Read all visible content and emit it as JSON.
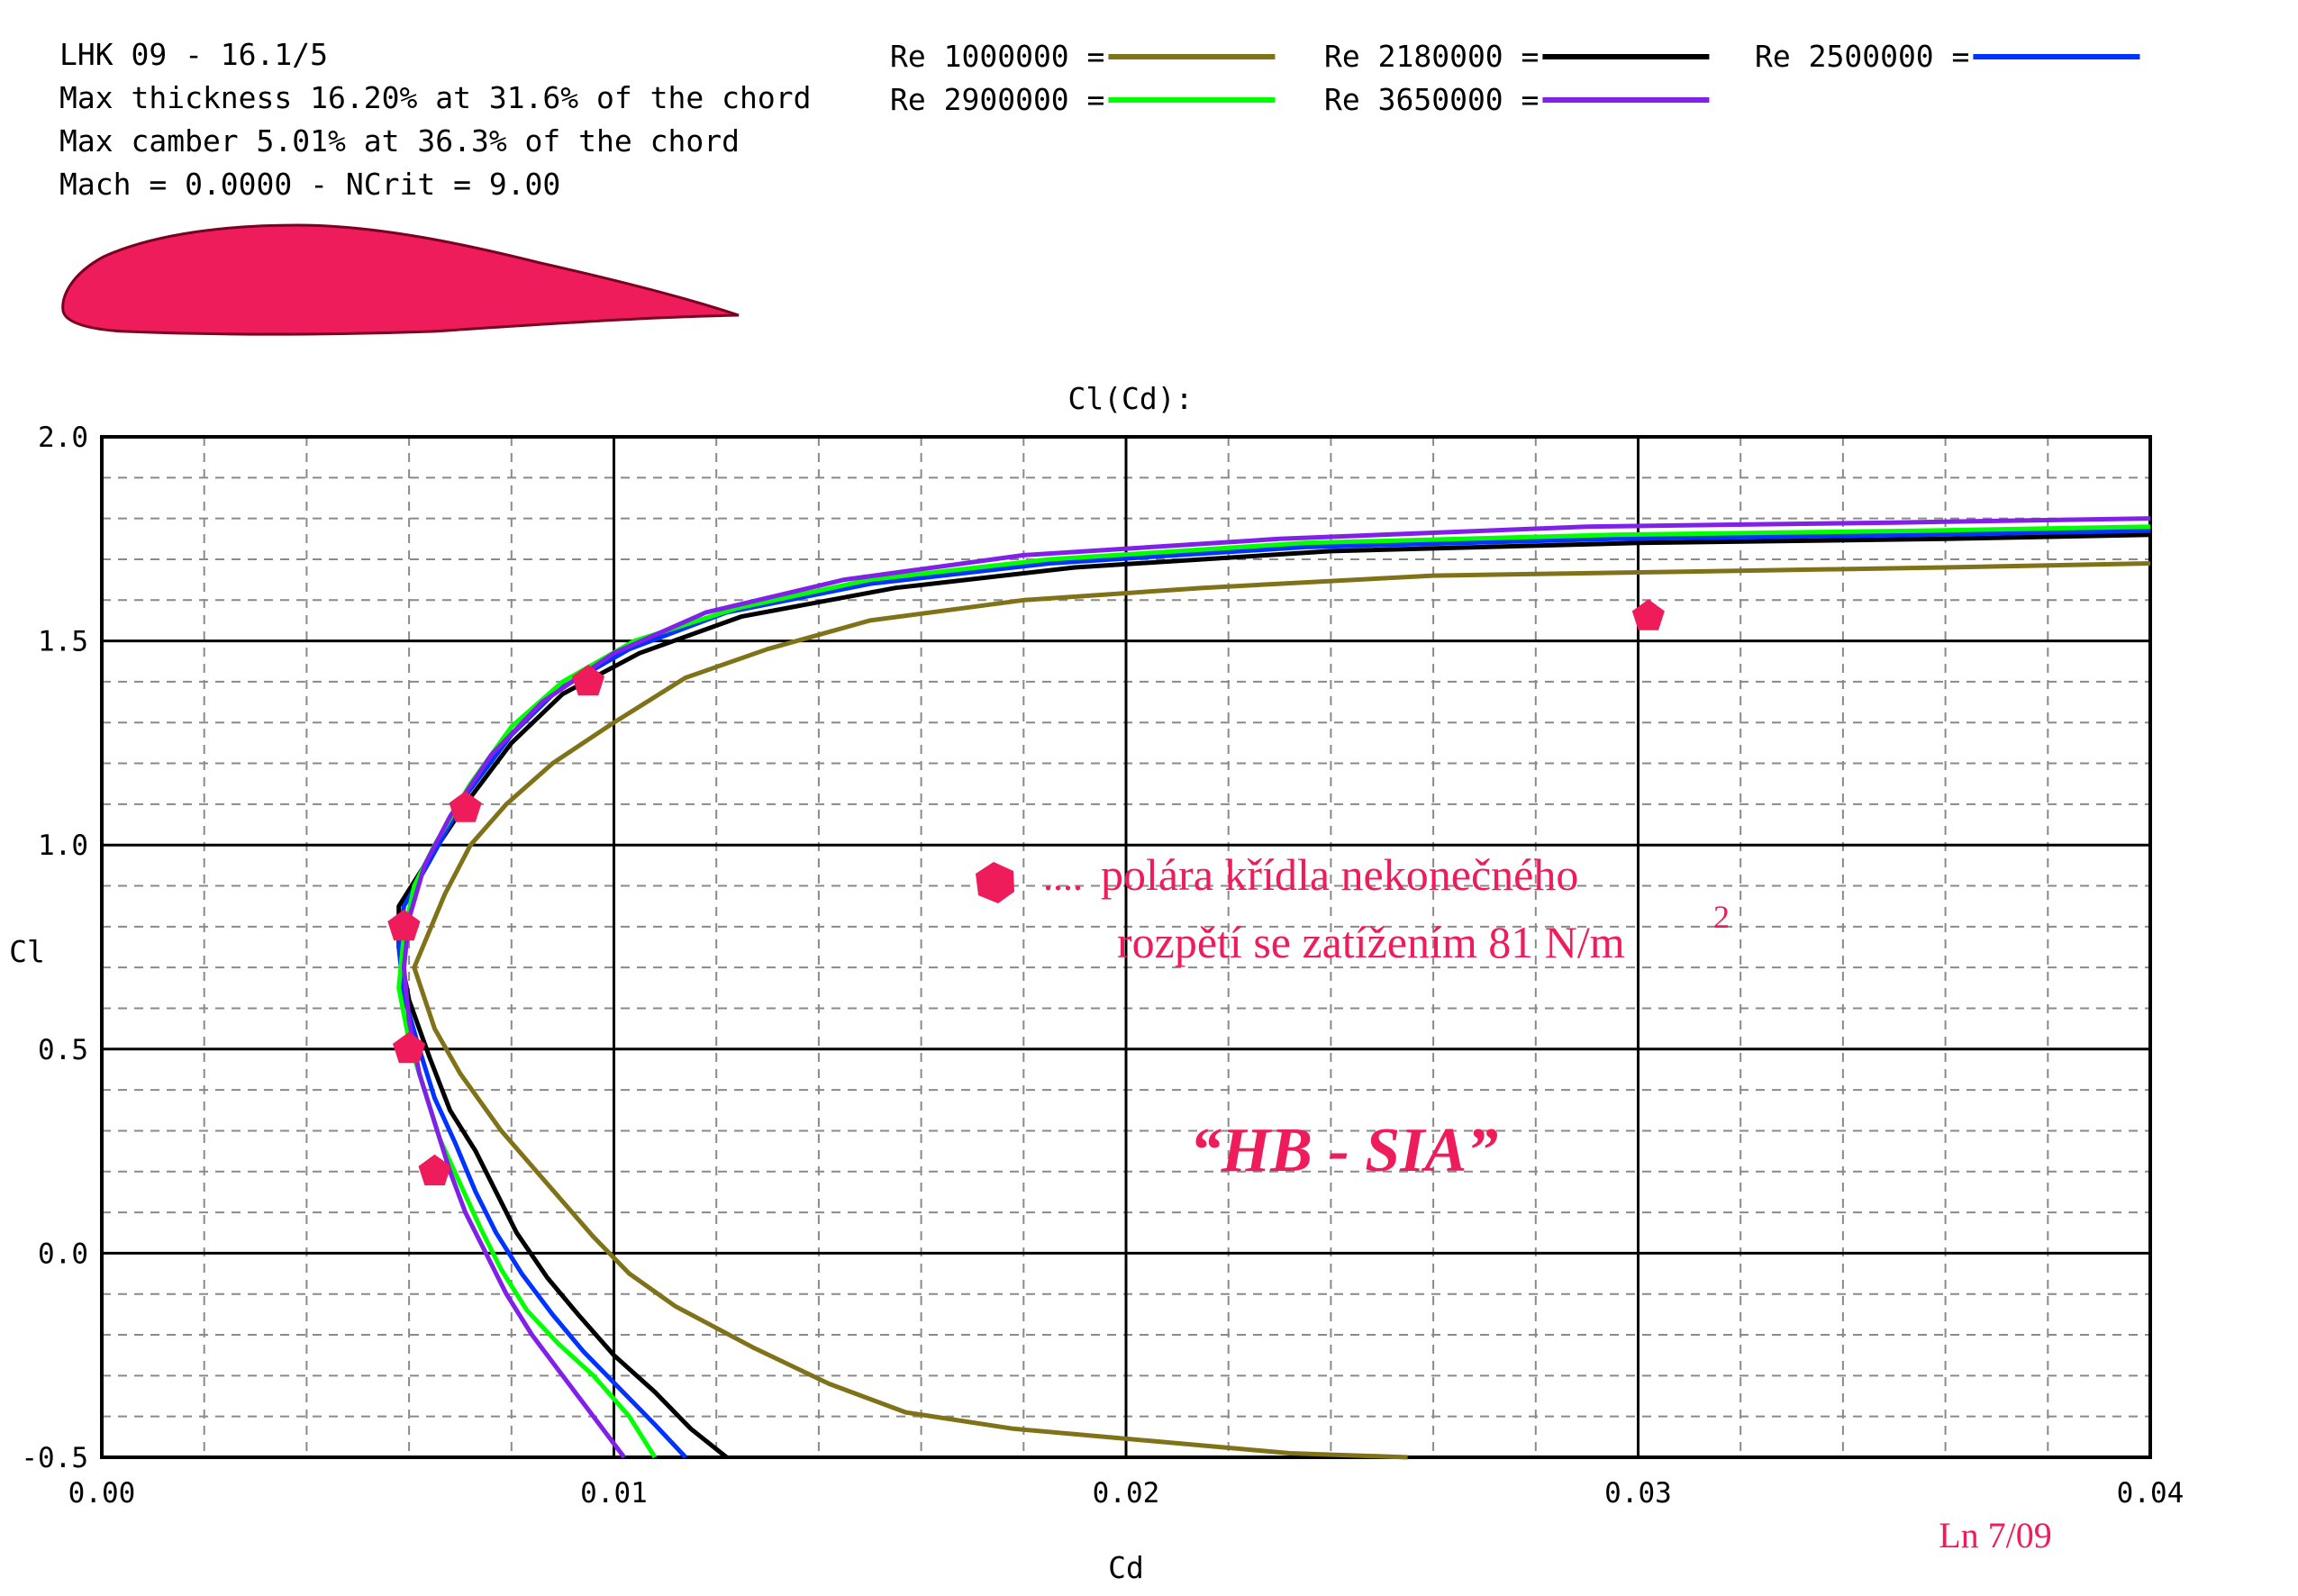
{
  "header": {
    "airfoil_name": "LHK 09 - 16.1/5",
    "thickness_line": "Max thickness 16.20% at 31.6% of the chord",
    "camber_line": "Max camber 5.01% at 36.3% of the chord",
    "mach_line": "Mach = 0.0000 - NCrit = 9.00"
  },
  "colors": {
    "airfoil_fill": "#ee1c5a",
    "marker": "#ee1c5a",
    "annotation": "#ee1c5a"
  },
  "annotations": {
    "marker_legend_dots": "....",
    "marker_legend_line1": "polára křídla nekonečného",
    "marker_legend_line2": "rozpětí se zatížením 81 N/m",
    "marker_legend_sup": "2",
    "name_label": "“HB - SIA”",
    "signature": "Ln 7/09"
  },
  "chart_data": {
    "type": "line",
    "title": "Cl(Cd):",
    "xlabel": "Cd",
    "ylabel": "Cl",
    "xlim": [
      0.0,
      0.04
    ],
    "ylim": [
      -0.5,
      2.0
    ],
    "x_ticks": [
      "0.00",
      "0.01",
      "0.02",
      "0.03",
      "0.04"
    ],
    "y_ticks": [
      "2.0",
      "1.5",
      "1.0",
      "0.5",
      "0.0",
      "-0.5"
    ],
    "grid": true,
    "legend_position": "top",
    "series": [
      {
        "name": "Re 1000000 =",
        "color": "#7f7218",
        "x": [
          0.0255,
          0.0232,
          0.0205,
          0.0178,
          0.0157,
          0.0142,
          0.0127,
          0.0112,
          0.0103,
          0.0096,
          0.0087,
          0.0078,
          0.007,
          0.0065,
          0.0061,
          0.0067,
          0.0072,
          0.0079,
          0.0088,
          0.01,
          0.0114,
          0.013,
          0.015,
          0.018,
          0.0215,
          0.026,
          0.031,
          0.036,
          0.04
        ],
        "y": [
          -0.5,
          -0.49,
          -0.46,
          -0.43,
          -0.39,
          -0.32,
          -0.23,
          -0.13,
          -0.05,
          0.04,
          0.17,
          0.3,
          0.44,
          0.55,
          0.7,
          0.88,
          1.0,
          1.1,
          1.2,
          1.3,
          1.41,
          1.48,
          1.55,
          1.6,
          1.63,
          1.66,
          1.67,
          1.68,
          1.69
        ]
      },
      {
        "name": "Re 2180000 =",
        "color": "#000000",
        "x": [
          0.0122,
          0.0115,
          0.0108,
          0.01,
          0.0093,
          0.0087,
          0.0081,
          0.0077,
          0.0073,
          0.0068,
          0.0064,
          0.006,
          0.0058,
          0.0058,
          0.0063,
          0.0071,
          0.008,
          0.009,
          0.0105,
          0.0125,
          0.0155,
          0.019,
          0.024,
          0.03,
          0.036,
          0.04
        ],
        "y": [
          -0.5,
          -0.43,
          -0.34,
          -0.25,
          -0.15,
          -0.06,
          0.05,
          0.15,
          0.25,
          0.35,
          0.48,
          0.62,
          0.75,
          0.85,
          0.95,
          1.1,
          1.25,
          1.37,
          1.47,
          1.56,
          1.63,
          1.68,
          1.72,
          1.74,
          1.75,
          1.76
        ]
      },
      {
        "name": "Re 2500000 =",
        "color": "#0033ff",
        "x": [
          0.0114,
          0.0108,
          0.0101,
          0.0094,
          0.0088,
          0.0082,
          0.0077,
          0.0073,
          0.0069,
          0.0065,
          0.0062,
          0.0059,
          0.0058,
          0.0059,
          0.0064,
          0.0071,
          0.008,
          0.0089,
          0.0103,
          0.0122,
          0.015,
          0.0185,
          0.0235,
          0.0295,
          0.0355,
          0.04
        ],
        "y": [
          -0.5,
          -0.42,
          -0.33,
          -0.24,
          -0.15,
          -0.05,
          0.05,
          0.15,
          0.27,
          0.38,
          0.5,
          0.63,
          0.75,
          0.85,
          0.96,
          1.12,
          1.27,
          1.38,
          1.48,
          1.57,
          1.64,
          1.69,
          1.73,
          1.75,
          1.76,
          1.77
        ]
      },
      {
        "name": "Re 2900000 =",
        "color": "#00ff00",
        "x": [
          0.0108,
          0.0103,
          0.0096,
          0.0089,
          0.0083,
          0.0078,
          0.0074,
          0.007,
          0.0066,
          0.0063,
          0.006,
          0.0058,
          0.0059,
          0.0061,
          0.0065,
          0.0072,
          0.008,
          0.009,
          0.0104,
          0.0124,
          0.015,
          0.0185,
          0.0235,
          0.0295,
          0.0355,
          0.04
        ],
        "y": [
          -0.5,
          -0.4,
          -0.3,
          -0.22,
          -0.14,
          -0.04,
          0.06,
          0.17,
          0.28,
          0.4,
          0.52,
          0.65,
          0.78,
          0.9,
          1.0,
          1.15,
          1.29,
          1.4,
          1.5,
          1.58,
          1.65,
          1.7,
          1.74,
          1.76,
          1.77,
          1.78
        ]
      },
      {
        "name": "Re 3650000 =",
        "color": "#8020e8",
        "x": [
          0.0102,
          0.0096,
          0.009,
          0.0084,
          0.0079,
          0.0075,
          0.0071,
          0.0068,
          0.0065,
          0.0062,
          0.006,
          0.0059,
          0.006,
          0.0063,
          0.0068,
          0.0076,
          0.0086,
          0.01,
          0.0118,
          0.0145,
          0.018,
          0.023,
          0.029,
          0.035,
          0.04
        ],
        "y": [
          -0.5,
          -0.4,
          -0.3,
          -0.2,
          -0.1,
          0.0,
          0.1,
          0.2,
          0.32,
          0.44,
          0.57,
          0.7,
          0.82,
          0.95,
          1.07,
          1.22,
          1.35,
          1.47,
          1.57,
          1.65,
          1.71,
          1.75,
          1.78,
          1.79,
          1.8
        ]
      }
    ],
    "markers": {
      "name": "polára křídla nekonečného rozpětí se zatížením 81 N/m2",
      "x": [
        0.0065,
        0.006,
        0.0059,
        0.0071,
        0.0095,
        0.0302
      ],
      "y": [
        0.2,
        0.5,
        0.8,
        1.09,
        1.4,
        1.56
      ]
    }
  }
}
